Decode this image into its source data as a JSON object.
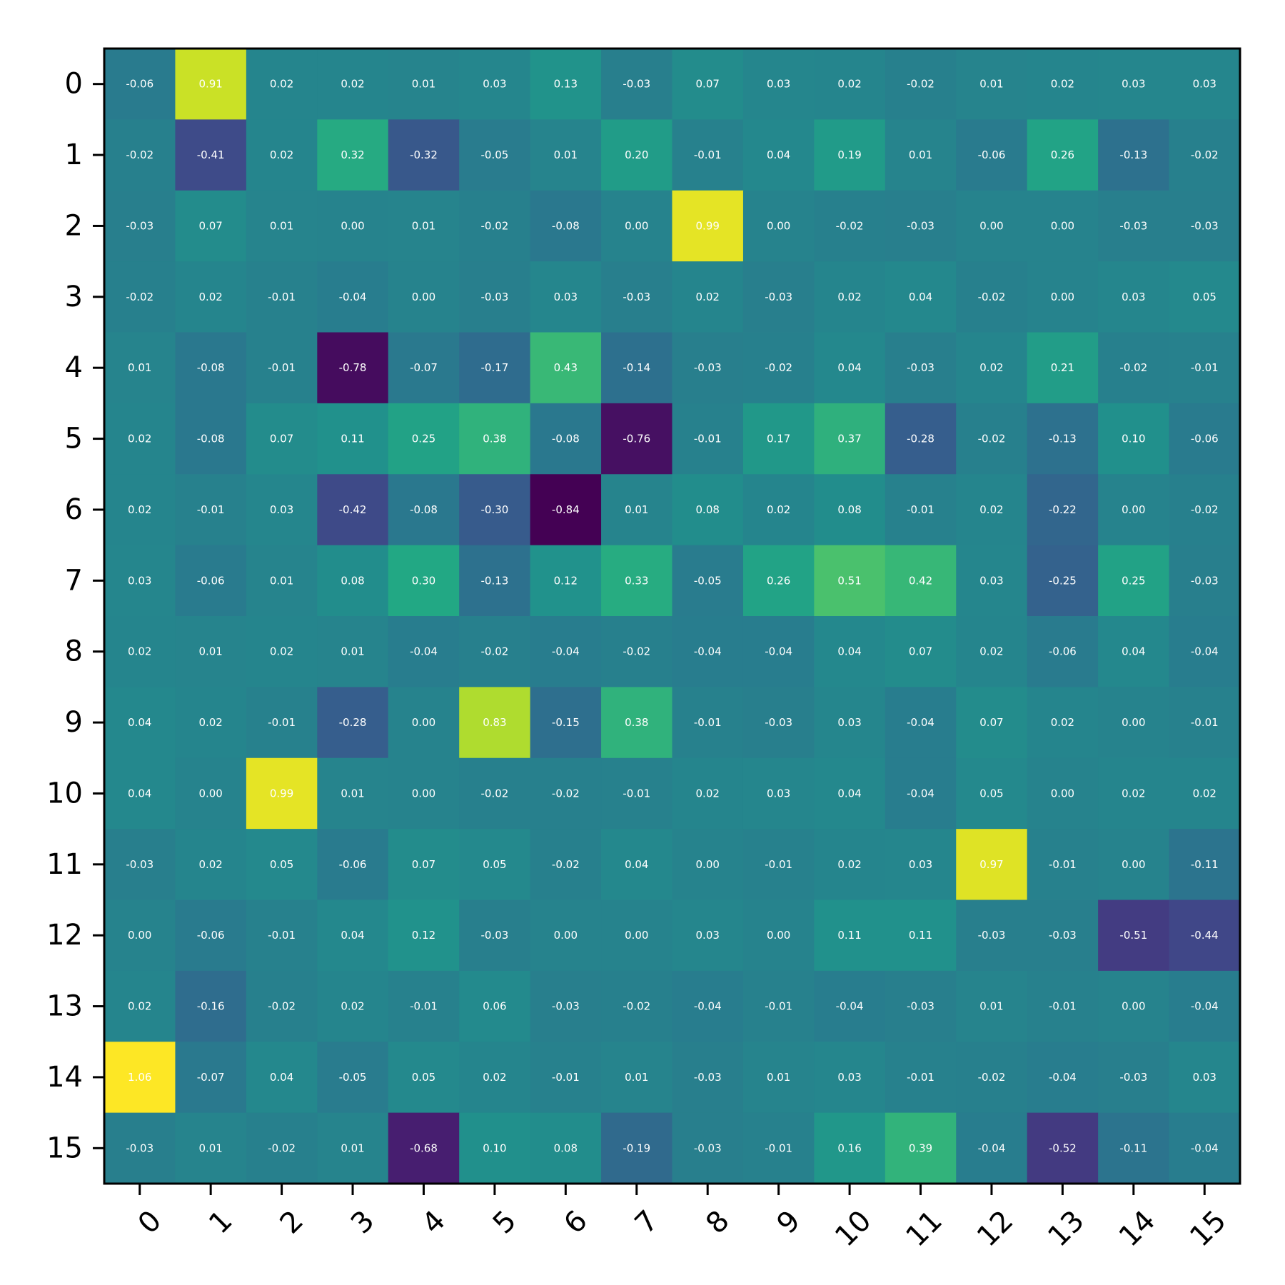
{
  "chart_data": {
    "type": "heatmap",
    "title": "",
    "xlabel": "",
    "ylabel": "",
    "x_categories": [
      "0",
      "1",
      "2",
      "3",
      "4",
      "5",
      "6",
      "7",
      "8",
      "9",
      "10",
      "11",
      "12",
      "13",
      "14",
      "15"
    ],
    "y_categories": [
      "0",
      "1",
      "2",
      "3",
      "4",
      "5",
      "6",
      "7",
      "8",
      "9",
      "10",
      "11",
      "12",
      "13",
      "14",
      "15"
    ],
    "colormap": "viridis",
    "vmin": -0.84,
    "vmax": 1.06,
    "grid": false,
    "colorbar": false,
    "values": [
      [
        -0.06,
        0.91,
        0.02,
        0.02,
        0.01,
        0.03,
        0.13,
        -0.03,
        0.07,
        0.03,
        0.02,
        -0.02,
        0.01,
        0.02,
        0.03,
        0.03
      ],
      [
        -0.02,
        -0.41,
        0.02,
        0.32,
        -0.32,
        -0.05,
        0.01,
        0.2,
        -0.01,
        0.04,
        0.19,
        0.01,
        -0.06,
        0.26,
        -0.13,
        -0.02
      ],
      [
        -0.03,
        0.07,
        0.01,
        -0.0,
        0.01,
        -0.02,
        -0.08,
        -0.0,
        0.99,
        -0.0,
        -0.02,
        -0.03,
        -0.0,
        0.0,
        -0.03,
        -0.03
      ],
      [
        -0.02,
        0.02,
        -0.01,
        -0.04,
        0.0,
        -0.03,
        0.03,
        -0.03,
        0.02,
        -0.03,
        0.02,
        0.04,
        -0.02,
        -0.0,
        0.03,
        0.05
      ],
      [
        0.01,
        -0.08,
        -0.01,
        -0.78,
        -0.07,
        -0.17,
        0.43,
        -0.14,
        -0.03,
        -0.02,
        0.04,
        -0.03,
        0.02,
        0.21,
        -0.02,
        -0.01
      ],
      [
        0.02,
        -0.08,
        0.07,
        0.11,
        0.25,
        0.38,
        -0.08,
        -0.76,
        -0.01,
        0.17,
        0.37,
        -0.28,
        -0.02,
        -0.13,
        0.1,
        -0.06
      ],
      [
        0.02,
        -0.01,
        0.03,
        -0.42,
        -0.08,
        -0.3,
        -0.84,
        0.01,
        0.08,
        0.02,
        0.08,
        -0.01,
        0.02,
        -0.22,
        -0.0,
        -0.02
      ],
      [
        0.03,
        -0.06,
        0.01,
        0.08,
        0.3,
        -0.13,
        0.12,
        0.33,
        -0.05,
        0.26,
        0.51,
        0.42,
        0.03,
        -0.25,
        0.25,
        -0.03
      ],
      [
        0.02,
        0.01,
        0.02,
        0.01,
        -0.04,
        -0.02,
        -0.04,
        -0.02,
        -0.04,
        -0.04,
        0.04,
        0.07,
        0.02,
        -0.06,
        0.04,
        -0.04
      ],
      [
        0.04,
        0.02,
        -0.01,
        -0.28,
        -0.0,
        0.83,
        -0.15,
        0.38,
        -0.01,
        -0.03,
        0.03,
        -0.04,
        0.07,
        0.02,
        0.0,
        -0.01
      ],
      [
        0.04,
        0.0,
        0.99,
        0.01,
        0.0,
        -0.02,
        -0.02,
        -0.01,
        0.02,
        0.03,
        0.04,
        -0.04,
        0.05,
        0.0,
        0.02,
        0.02
      ],
      [
        -0.03,
        0.02,
        0.05,
        -0.06,
        0.07,
        0.05,
        -0.02,
        0.04,
        -0.0,
        -0.01,
        0.02,
        0.03,
        0.97,
        -0.01,
        0.0,
        -0.11
      ],
      [
        -0.0,
        -0.06,
        -0.01,
        0.04,
        0.12,
        -0.03,
        -0.0,
        0.0,
        0.03,
        0.0,
        0.11,
        0.11,
        -0.03,
        -0.03,
        -0.51,
        -0.44
      ],
      [
        0.02,
        -0.16,
        -0.02,
        0.02,
        -0.01,
        0.06,
        -0.03,
        -0.02,
        -0.04,
        -0.01,
        -0.04,
        -0.03,
        0.01,
        -0.01,
        0.0,
        -0.04
      ],
      [
        1.06,
        -0.07,
        0.04,
        -0.05,
        0.05,
        0.02,
        -0.01,
        0.01,
        -0.03,
        0.01,
        0.03,
        -0.01,
        -0.02,
        -0.04,
        -0.03,
        0.03
      ],
      [
        -0.03,
        0.01,
        -0.02,
        0.01,
        -0.68,
        0.1,
        0.08,
        -0.19,
        -0.03,
        -0.01,
        0.16,
        0.39,
        -0.04,
        -0.52,
        -0.11,
        -0.04
      ]
    ]
  }
}
